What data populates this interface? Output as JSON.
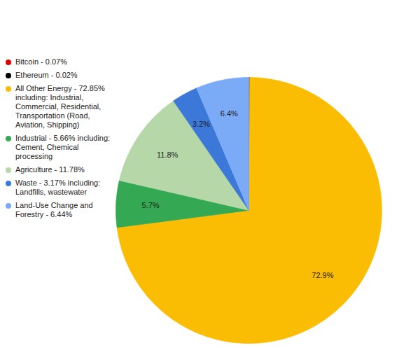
{
  "chart_data": {
    "type": "pie",
    "categories": [
      "Bitcoin - 0.07%",
      "Ethereum - 0.02%",
      "All Other Energy - 72.85% including: Industrial, Commercial, Residential, Transportation (Road, Aviation, Shipping)",
      "Industrial - 5.66% including: Cement, Chemical processing",
      "Agriculture - 11.78%",
      "Waste - 3.17% including: Landfills, wastewater",
      "Land-Use Change and Forestry - 6.44%"
    ],
    "values": [
      0.07,
      0.02,
      72.85,
      5.66,
      11.78,
      3.17,
      6.44
    ],
    "value_labels": [
      null,
      null,
      "72.9%",
      "5.7%",
      "11.8%",
      "3.2%",
      "6.4%"
    ],
    "colors": [
      "#e00000",
      "#000000",
      "#fbbc04",
      "#34a853",
      "#b6d7a8",
      "#3c78d8",
      "#7baaf7"
    ],
    "data_labels": true,
    "legend": "left"
  }
}
